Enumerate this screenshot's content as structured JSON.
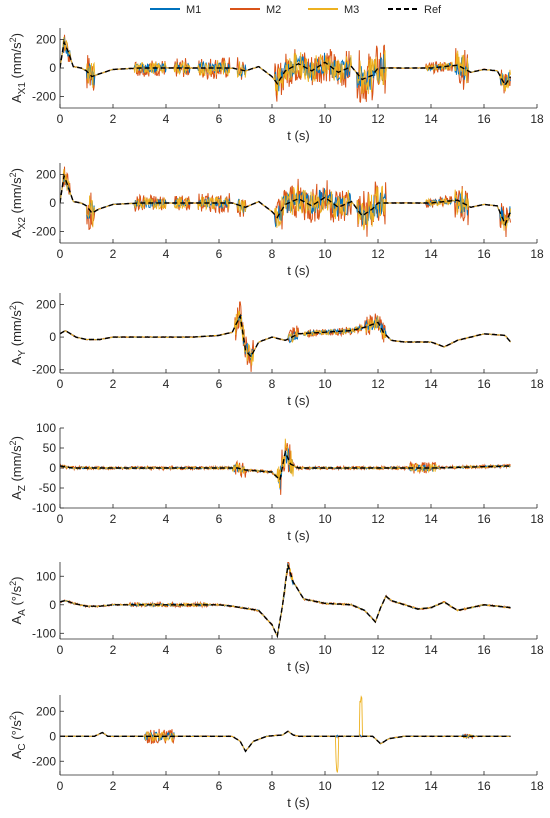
{
  "legend": [
    {
      "name": "M1",
      "color": "#0072BD",
      "dash": false
    },
    {
      "name": "M2",
      "color": "#D95319",
      "dash": false
    },
    {
      "name": "M3",
      "color": "#EDB120",
      "dash": false
    },
    {
      "name": "Ref",
      "color": "#000000",
      "dash": true
    }
  ],
  "chart_data": [
    {
      "id": "ax1",
      "type": "line",
      "ylabel_main": "A",
      "ylabel_sub": "X1",
      "ylabel_unit": "(mm/s",
      "ylabel_sup": "2",
      "ylabel_end": ")",
      "xlabel": "t (s)",
      "xlim": [
        0,
        18
      ],
      "ylim": [
        -280,
        280
      ],
      "yticks": [
        -200,
        0,
        200
      ],
      "xticks": [
        0,
        2,
        4,
        6,
        8,
        10,
        12,
        14,
        16,
        18
      ],
      "ref": [
        [
          0,
          0
        ],
        [
          0.15,
          180
        ],
        [
          0.3,
          120
        ],
        [
          0.5,
          10
        ],
        [
          0.8,
          0
        ],
        [
          1.0,
          -20
        ],
        [
          1.2,
          -60
        ],
        [
          1.5,
          -40
        ],
        [
          2.0,
          -10
        ],
        [
          3,
          0
        ],
        [
          5,
          0
        ],
        [
          6.5,
          0
        ],
        [
          7,
          -20
        ],
        [
          7.5,
          10
        ],
        [
          8,
          -60
        ],
        [
          8.2,
          -110
        ],
        [
          8.5,
          -20
        ],
        [
          9,
          30
        ],
        [
          9.5,
          -20
        ],
        [
          10,
          40
        ],
        [
          10.5,
          -30
        ],
        [
          11,
          10
        ],
        [
          11.4,
          -80
        ],
        [
          11.8,
          -50
        ],
        [
          12,
          0
        ],
        [
          13,
          0
        ],
        [
          14,
          0
        ],
        [
          15,
          20
        ],
        [
          15.5,
          -30
        ],
        [
          16,
          -10
        ],
        [
          16.5,
          -20
        ],
        [
          16.8,
          -120
        ],
        [
          17,
          -60
        ]
      ],
      "noise": [
        [
          0.1,
          0.4,
          80
        ],
        [
          1.0,
          1.3,
          140
        ],
        [
          2.8,
          4.0,
          60
        ],
        [
          4.3,
          4.9,
          70
        ],
        [
          5.2,
          6.4,
          80
        ],
        [
          6.7,
          7.0,
          90
        ],
        [
          8.1,
          11.0,
          130
        ],
        [
          11.2,
          12.3,
          180
        ],
        [
          13.8,
          14.8,
          40
        ],
        [
          14.9,
          15.4,
          150
        ],
        [
          16.6,
          17.0,
          90
        ]
      ]
    },
    {
      "id": "ax2",
      "type": "line",
      "ylabel_main": "A",
      "ylabel_sub": "X2",
      "ylabel_unit": "(mm/s",
      "ylabel_sup": "2",
      "ylabel_end": ")",
      "xlabel": "t (s)",
      "xlim": [
        0,
        18
      ],
      "ylim": [
        -280,
        280
      ],
      "yticks": [
        -200,
        0,
        200
      ],
      "xticks": [
        0,
        2,
        4,
        6,
        8,
        10,
        12,
        14,
        16,
        18
      ],
      "ref": [
        [
          0,
          0
        ],
        [
          0.15,
          190
        ],
        [
          0.3,
          120
        ],
        [
          0.5,
          10
        ],
        [
          0.8,
          0
        ],
        [
          1.0,
          -20
        ],
        [
          1.2,
          -70
        ],
        [
          1.5,
          -40
        ],
        [
          2.0,
          -10
        ],
        [
          3,
          0
        ],
        [
          5,
          0
        ],
        [
          6.5,
          0
        ],
        [
          7,
          -30
        ],
        [
          7.5,
          10
        ],
        [
          8,
          -60
        ],
        [
          8.2,
          -100
        ],
        [
          8.5,
          -10
        ],
        [
          9,
          30
        ],
        [
          9.5,
          -20
        ],
        [
          10,
          40
        ],
        [
          10.5,
          -30
        ],
        [
          11,
          10
        ],
        [
          11.4,
          -90
        ],
        [
          11.8,
          -40
        ],
        [
          12,
          0
        ],
        [
          13,
          0
        ],
        [
          14,
          0
        ],
        [
          15,
          20
        ],
        [
          15.5,
          -30
        ],
        [
          16,
          -10
        ],
        [
          16.5,
          -20
        ],
        [
          16.8,
          -150
        ],
        [
          17,
          -60
        ]
      ],
      "noise": [
        [
          0.1,
          0.4,
          80
        ],
        [
          1.0,
          1.3,
          150
        ],
        [
          2.8,
          4.0,
          60
        ],
        [
          4.3,
          4.9,
          60
        ],
        [
          5.2,
          6.4,
          70
        ],
        [
          6.7,
          7.0,
          80
        ],
        [
          8.1,
          11.0,
          140
        ],
        [
          11.2,
          12.3,
          180
        ],
        [
          13.8,
          14.8,
          40
        ],
        [
          14.9,
          15.4,
          150
        ],
        [
          16.6,
          17.0,
          110
        ]
      ]
    },
    {
      "id": "ay",
      "type": "line",
      "ylabel_main": "A",
      "ylabel_sub": "Y",
      "ylabel_unit": "(mm/s",
      "ylabel_sup": "2",
      "ylabel_end": ")",
      "xlabel": "t (s)",
      "xlim": [
        0,
        18
      ],
      "ylim": [
        -220,
        270
      ],
      "yticks": [
        -200,
        0,
        200
      ],
      "xticks": [
        0,
        2,
        4,
        6,
        8,
        10,
        12,
        14,
        16,
        18
      ],
      "ref": [
        [
          0,
          20
        ],
        [
          0.2,
          40
        ],
        [
          0.4,
          20
        ],
        [
          0.6,
          0
        ],
        [
          1.0,
          -15
        ],
        [
          1.5,
          -15
        ],
        [
          2,
          0
        ],
        [
          5,
          0
        ],
        [
          6,
          10
        ],
        [
          6.5,
          30
        ],
        [
          6.8,
          130
        ],
        [
          7.0,
          -80
        ],
        [
          7.2,
          -120
        ],
        [
          7.5,
          -30
        ],
        [
          8,
          0
        ],
        [
          8.5,
          -20
        ],
        [
          9,
          20
        ],
        [
          10,
          30
        ],
        [
          11,
          40
        ],
        [
          11.5,
          60
        ],
        [
          12,
          90
        ],
        [
          12.2,
          30
        ],
        [
          12.5,
          -20
        ],
        [
          13,
          -30
        ],
        [
          14,
          -30
        ],
        [
          14.5,
          -60
        ],
        [
          15,
          -20
        ],
        [
          16,
          20
        ],
        [
          16.8,
          10
        ],
        [
          17,
          -30
        ]
      ],
      "noise": [
        [
          6.6,
          7.3,
          100
        ],
        [
          8.6,
          9.0,
          60
        ],
        [
          11.5,
          12.3,
          60
        ],
        [
          9.2,
          11.4,
          25
        ]
      ]
    },
    {
      "id": "az",
      "type": "line",
      "ylabel_main": "A",
      "ylabel_sub": "Z",
      "ylabel_unit": "(mm/s",
      "ylabel_sup": "2",
      "ylabel_end": ")",
      "xlabel": "t (s)",
      "xlim": [
        0,
        18
      ],
      "ylim": [
        -100,
        100
      ],
      "yticks": [
        -100,
        -50,
        0,
        50,
        100
      ],
      "xticks": [
        0,
        2,
        4,
        6,
        8,
        10,
        12,
        14,
        16,
        18
      ],
      "ref": [
        [
          0,
          5
        ],
        [
          0.5,
          0
        ],
        [
          6,
          0
        ],
        [
          6.7,
          0
        ],
        [
          7,
          -5
        ],
        [
          8.0,
          -10
        ],
        [
          8.3,
          -30
        ],
        [
          8.5,
          40
        ],
        [
          8.7,
          10
        ],
        [
          9,
          0
        ],
        [
          12,
          0
        ],
        [
          13,
          0
        ],
        [
          14,
          0
        ],
        [
          17,
          5
        ]
      ],
      "noise": [
        [
          6.5,
          7.0,
          20
        ],
        [
          8.2,
          8.8,
          50
        ],
        [
          13.2,
          14.2,
          15
        ],
        [
          0,
          17,
          4
        ]
      ]
    },
    {
      "id": "aa",
      "type": "line",
      "ylabel_main": "A",
      "ylabel_sub": "A",
      "ylabel_unit": "(°/s",
      "ylabel_sup": "2",
      "ylabel_end": ")",
      "xlabel": "t (s)",
      "xlim": [
        0,
        18
      ],
      "ylim": [
        -120,
        150
      ],
      "yticks": [
        -100,
        0,
        100
      ],
      "xticks": [
        0,
        2,
        4,
        6,
        8,
        10,
        12,
        14,
        16,
        18
      ],
      "ref": [
        [
          0,
          10
        ],
        [
          0.2,
          15
        ],
        [
          0.5,
          5
        ],
        [
          1,
          -5
        ],
        [
          1.5,
          -5
        ],
        [
          2,
          0
        ],
        [
          6,
          0
        ],
        [
          6.5,
          -5
        ],
        [
          7.5,
          -20
        ],
        [
          8.0,
          -70
        ],
        [
          8.2,
          -110
        ],
        [
          8.4,
          0
        ],
        [
          8.6,
          140
        ],
        [
          8.8,
          80
        ],
        [
          9.2,
          20
        ],
        [
          10,
          5
        ],
        [
          11,
          0
        ],
        [
          11.5,
          -20
        ],
        [
          11.9,
          -60
        ],
        [
          12.1,
          -10
        ],
        [
          12.3,
          30
        ],
        [
          12.5,
          15
        ],
        [
          13,
          0
        ],
        [
          13.5,
          -15
        ],
        [
          14,
          -10
        ],
        [
          14.5,
          10
        ],
        [
          15,
          -20
        ],
        [
          15.5,
          -10
        ],
        [
          16,
          0
        ],
        [
          16.5,
          -5
        ],
        [
          17,
          -10
        ]
      ],
      "noise": [
        [
          2.6,
          5.6,
          8
        ],
        [
          8.3,
          8.8,
          20
        ]
      ]
    },
    {
      "id": "ac",
      "type": "line",
      "ylabel_main": "A",
      "ylabel_sub": "C",
      "ylabel_unit": "(°/s",
      "ylabel_sup": "2",
      "ylabel_end": ")",
      "xlabel": "t (s)",
      "xlim": [
        0,
        18
      ],
      "ylim": [
        -310,
        330
      ],
      "yticks": [
        -200,
        0,
        200
      ],
      "xticks": [
        0,
        2,
        4,
        6,
        8,
        10,
        12,
        14,
        16,
        18
      ],
      "ref": [
        [
          0,
          0
        ],
        [
          1.3,
          0
        ],
        [
          1.6,
          30
        ],
        [
          1.8,
          0
        ],
        [
          6.5,
          0
        ],
        [
          6.8,
          -40
        ],
        [
          7.0,
          -120
        ],
        [
          7.3,
          -40
        ],
        [
          7.8,
          0
        ],
        [
          8.4,
          10
        ],
        [
          8.6,
          40
        ],
        [
          8.8,
          10
        ],
        [
          9,
          0
        ],
        [
          11.8,
          0
        ],
        [
          12.1,
          -60
        ],
        [
          12.4,
          -20
        ],
        [
          13,
          0
        ],
        [
          17,
          0
        ]
      ],
      "noise": [
        [
          3.2,
          4.3,
          60
        ],
        [
          10.4,
          10.5,
          -300
        ],
        [
          11.3,
          11.4,
          320
        ],
        [
          15.2,
          15.6,
          20
        ]
      ]
    }
  ]
}
